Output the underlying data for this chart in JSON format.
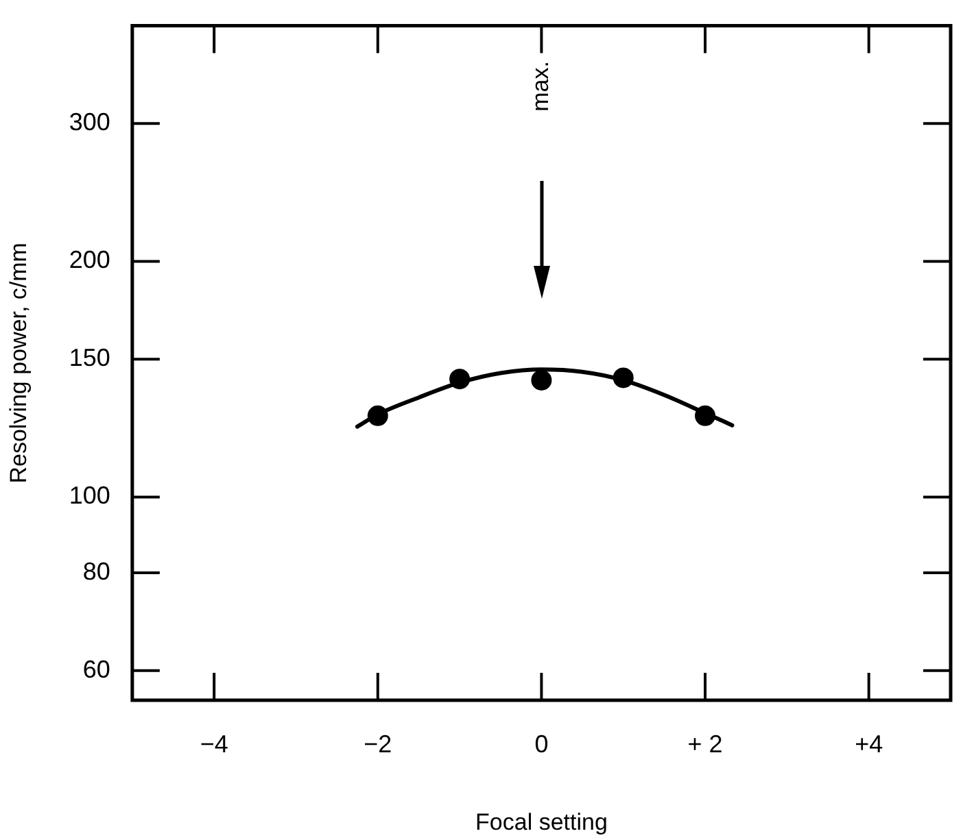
{
  "chart_data": {
    "type": "scatter",
    "xlabel": "Focal setting",
    "ylabel": "Resolving power, c/mm",
    "log": "y",
    "grid": false,
    "legend": false,
    "xlim": [
      -5,
      5
    ],
    "xticks": [
      {
        "value": -4,
        "label": "−4"
      },
      {
        "value": -2,
        "label": "−2"
      },
      0,
      {
        "value": 2,
        "label": "+ 2"
      },
      {
        "value": 4,
        "label": "+4"
      }
    ],
    "ylim": [
      55,
      400
    ],
    "yticks": [
      60,
      80,
      100,
      150,
      200,
      300
    ],
    "series": [
      {
        "type": "scatter",
        "marker": "circle",
        "color": "#000000",
        "x": [
          -2,
          -1,
          0,
          1,
          2
        ],
        "values": [
          127,
          141.5,
          141,
          142,
          127
        ]
      },
      {
        "type": "line",
        "marker": "none",
        "line_style": "solid",
        "color": "#000000",
        "x": [
          -2.25,
          -2,
          -1.5,
          -1,
          -0.5,
          0,
          0.5,
          1,
          1.5,
          2,
          2.33
        ],
        "values": [
          123,
          127.5,
          134,
          140,
          144,
          145.5,
          144.5,
          141,
          135,
          128,
          123.5
        ]
      }
    ],
    "annotations": [
      "max."
    ]
  }
}
